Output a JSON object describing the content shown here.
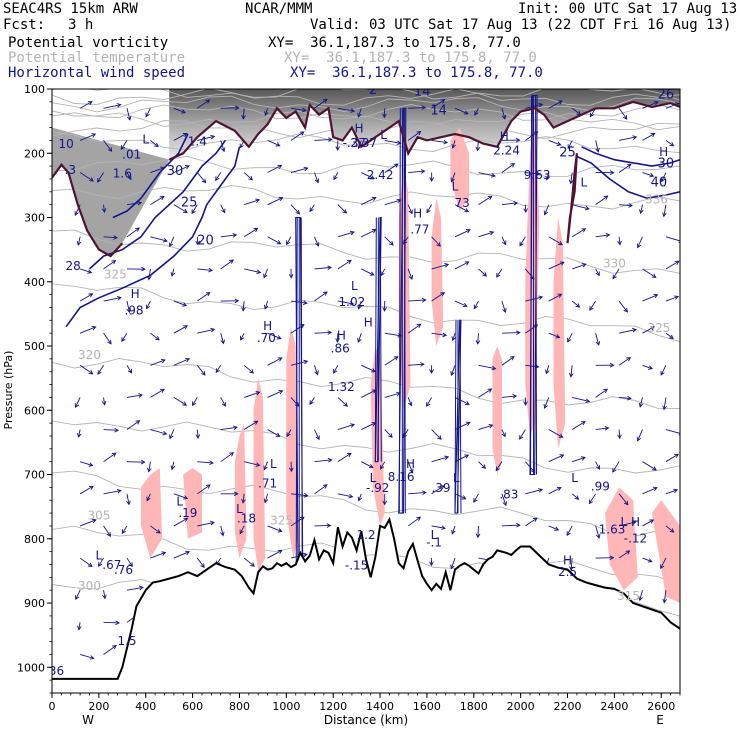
{
  "header": {
    "model": "SEAC4RS 15km ARW",
    "org": "NCAR/MMM",
    "init": "Init: 00 UTC Sat 17 Aug 13",
    "fcst_label": "Fcst:",
    "fcst_value": "3 h",
    "valid": "Valid: 03 UTC Sat 17 Aug 13 (22 CDT Fri 16 Aug 13)",
    "fields": [
      {
        "name": "Potential vorticity",
        "xy": "XY=  36.1,187.3 to 175.8, 77.0",
        "color": "#000000"
      },
      {
        "name": "Potential temperature",
        "xy": "XY=  36.1,187.3 to 175.8, 77.0",
        "color": "#b4b4b4"
      },
      {
        "name": "Horizontal wind speed",
        "xy": "XY=  36.1,187.3 to 175.8, 77.0",
        "color": "#14148c"
      }
    ]
  },
  "colors": {
    "pv_fill": "#ffb6b6",
    "theta": "#b4b4b4",
    "wind": "#14148c",
    "terrain": "#000000",
    "pv_contour": "#501432"
  },
  "chart_data": {
    "type": "cross-section",
    "xlabel": "Distance (km)",
    "ylabel": "Pressure (hPa)",
    "x_ticks": [
      0,
      200,
      400,
      600,
      800,
      1000,
      1200,
      1400,
      1600,
      1800,
      2000,
      2200,
      2400,
      2600
    ],
    "y_ticks": [
      100,
      200,
      300,
      400,
      500,
      600,
      700,
      800,
      900,
      1000
    ],
    "xlim": [
      0,
      2680
    ],
    "ylim": [
      1040,
      100
    ],
    "y_scale": "linear",
    "west_label": "W",
    "east_label": "E",
    "terrain": {
      "x": [
        0,
        280,
        300,
        340,
        360,
        400,
        430,
        460,
        500,
        540,
        580,
        620,
        660,
        700,
        740,
        780,
        810,
        840,
        860,
        880,
        900,
        920,
        940,
        960,
        980,
        1000,
        1020,
        1040,
        1060,
        1080,
        1100,
        1120,
        1140,
        1160,
        1180,
        1200,
        1220,
        1240,
        1260,
        1280,
        1300,
        1320,
        1340,
        1360,
        1380,
        1400,
        1420,
        1440,
        1460,
        1480,
        1500,
        1520,
        1540,
        1560,
        1580,
        1600,
        1620,
        1640,
        1660,
        1680,
        1700,
        1720,
        1740,
        1760,
        1780,
        1800,
        1820,
        1840,
        1860,
        1880,
        1900,
        1920,
        1940,
        1960,
        1980,
        2000,
        2040,
        2080,
        2120,
        2160,
        2200,
        2240,
        2280,
        2320,
        2360,
        2400,
        2440,
        2480,
        2520,
        2560,
        2600,
        2640,
        2680
      ],
      "p": [
        1018,
        1018,
        1000,
        940,
        905,
        880,
        868,
        866,
        862,
        858,
        852,
        858,
        848,
        838,
        844,
        848,
        858,
        876,
        885,
        852,
        843,
        848,
        846,
        838,
        842,
        838,
        844,
        840,
        822,
        835,
        826,
        802,
        832,
        818,
        822,
        838,
        782,
        812,
        790,
        798,
        818,
        788,
        832,
        860,
        828,
        780,
        783,
        770,
        800,
        838,
        846,
        820,
        808,
        834,
        858,
        870,
        880,
        870,
        878,
        852,
        880,
        848,
        842,
        838,
        842,
        848,
        854,
        840,
        832,
        828,
        818,
        820,
        822,
        825,
        818,
        812,
        812,
        826,
        840,
        845,
        848,
        862,
        868,
        872,
        876,
        878,
        885,
        900,
        905,
        910,
        915,
        930,
        940
      ]
    },
    "pv_contours": [
      {
        "x": [
          500,
          560,
          620,
          700,
          780,
          840,
          880,
          920,
          960,
          1000,
          1040,
          1080,
          1100,
          1140,
          1180,
          1200,
          1240,
          1280,
          1320,
          1380,
          1440,
          1480,
          1520,
          1560,
          1600,
          1660,
          1720,
          1780,
          1840,
          1900,
          1960,
          2000,
          2060,
          2100,
          2140,
          2200,
          2260,
          2320,
          2400,
          2480,
          2560,
          2640,
          2680
        ],
        "p": [
          210,
          200,
          175,
          150,
          165,
          190,
          170,
          155,
          130,
          145,
          135,
          160,
          125,
          140,
          130,
          175,
          180,
          160,
          190,
          175,
          160,
          150,
          200,
          175,
          180,
          175,
          170,
          175,
          185,
          190,
          150,
          135,
          130,
          140,
          160,
          150,
          140,
          130,
          130,
          120,
          128,
          122,
          128
        ]
      },
      {
        "x": [
          0,
          40,
          70,
          110,
          150,
          200,
          250,
          300
        ],
        "p": [
          238,
          218,
          230,
          280,
          320,
          350,
          360,
          340
        ]
      },
      {
        "x": [
          2200,
          2210,
          2230,
          2240,
          2230,
          2215,
          2200
        ],
        "p": [
          340,
          300,
          260,
          200,
          230,
          290,
          340
        ]
      }
    ],
    "pv_labels": [
      {
        "text": "10",
        "x": 60,
        "p": 192
      },
      {
        "text": ".3",
        "x": 78,
        "p": 232
      },
      {
        "text": "28",
        "x": 90,
        "p": 382
      },
      {
        "text": "1.6",
        "x": 300,
        "p": 238
      },
      {
        "text": ".01",
        "x": 340,
        "p": 208
      },
      {
        "text": "1.4",
        "x": 620,
        "p": 188
      },
      {
        "text": "-.37",
        "x": 1290,
        "p": 190
      },
      {
        "text": "2.37",
        "x": 1330,
        "p": 190
      },
      {
        "text": "2.42",
        "x": 1400,
        "p": 240
      },
      {
        "text": "2.24",
        "x": 1940,
        "p": 202
      },
      {
        "text": "9.63",
        "x": 2070,
        "p": 240
      },
      {
        "text": "1.02",
        "x": 1280,
        "p": 438
      },
      {
        "text": "1.32",
        "x": 1235,
        "p": 570
      },
      {
        "text": ".86",
        "x": 1230,
        "p": 510
      },
      {
        "text": ".70",
        "x": 915,
        "p": 494
      },
      {
        "text": ".98",
        "x": 350,
        "p": 451
      },
      {
        "text": ".71",
        "x": 920,
        "p": 720
      },
      {
        "text": ".19",
        "x": 580,
        "p": 766
      },
      {
        "text": ".18",
        "x": 830,
        "p": 775
      },
      {
        "text": "-.92",
        "x": 1390,
        "p": 727
      },
      {
        "text": "8.16",
        "x": 1490,
        "p": 710
      },
      {
        "text": ".39",
        "x": 1660,
        "p": 727
      },
      {
        "text": ".83",
        "x": 1950,
        "p": 737
      },
      {
        "text": ".99",
        "x": 2340,
        "p": 725
      },
      {
        "text": "1.63",
        "x": 2390,
        "p": 792
      },
      {
        "text": "-.12",
        "x": 2490,
        "p": 806
      },
      {
        "text": "-.15",
        "x": 1300,
        "p": 848
      },
      {
        "text": "1.2",
        "x": 1340,
        "p": 800
      },
      {
        "text": ".67",
        "x": 255,
        "p": 847
      },
      {
        "text": ".76",
        "x": 305,
        "p": 855
      },
      {
        "text": "2.5",
        "x": 2200,
        "p": 858
      },
      {
        "text": "1.5",
        "x": 320,
        "p": 965
      },
      {
        "text": "-.1",
        "x": 1630,
        "p": 812
      },
      {
        "text": "-36",
        "x": 10,
        "p": 1012
      },
      {
        "text": "73",
        "x": 1750,
        "p": 284
      },
      {
        "text": ".77",
        "x": 1570,
        "p": 325
      }
    ],
    "hl_markers": [
      {
        "text": "H",
        "x": 355,
        "p": 425
      },
      {
        "text": "H",
        "x": 920,
        "p": 475
      },
      {
        "text": "H",
        "x": 1235,
        "p": 490
      },
      {
        "text": "H",
        "x": 1350,
        "p": 470
      },
      {
        "text": "H",
        "x": 1530,
        "p": 690
      },
      {
        "text": "H",
        "x": 1560,
        "p": 300
      },
      {
        "text": "H",
        "x": 1930,
        "p": 180
      },
      {
        "text": "H",
        "x": 2610,
        "p": 204
      },
      {
        "text": "H",
        "x": 2490,
        "p": 780
      },
      {
        "text": "H",
        "x": 2200,
        "p": 840
      },
      {
        "text": "H",
        "x": 1310,
        "p": 168
      },
      {
        "text": "L",
        "x": 1290,
        "p": 413
      },
      {
        "text": "L",
        "x": 945,
        "p": 690
      },
      {
        "text": "L",
        "x": 545,
        "p": 748
      },
      {
        "text": "L",
        "x": 800,
        "p": 760
      },
      {
        "text": "L",
        "x": 1370,
        "p": 712
      },
      {
        "text": "L",
        "x": 1725,
        "p": 712
      },
      {
        "text": "L",
        "x": 2230,
        "p": 712
      },
      {
        "text": "L",
        "x": 2440,
        "p": 780
      },
      {
        "text": "L",
        "x": 2270,
        "p": 252
      },
      {
        "text": "L",
        "x": 1720,
        "p": 258
      },
      {
        "text": "L",
        "x": 400,
        "p": 185
      },
      {
        "text": "L",
        "x": 1415,
        "p": 178
      },
      {
        "text": "L",
        "x": 200,
        "p": 832
      },
      {
        "text": "L",
        "x": 1630,
        "p": 800
      }
    ],
    "wind_speed_labels": [
      {
        "text": "30",
        "x": 525,
        "p": 234
      },
      {
        "text": "25",
        "x": 585,
        "p": 283
      },
      {
        "text": "20",
        "x": 655,
        "p": 342
      },
      {
        "text": "30",
        "x": 2620,
        "p": 222
      },
      {
        "text": "40",
        "x": 2590,
        "p": 252
      },
      {
        "text": "26",
        "x": 2620,
        "p": 115
      },
      {
        "text": "25",
        "x": 2200,
        "p": 205
      },
      {
        "text": "14",
        "x": 1580,
        "p": 110
      },
      {
        "text": "14",
        "x": 1650,
        "p": 140
      },
      {
        "text": "2",
        "x": 1370,
        "p": 108
      }
    ],
    "theta_labels": [
      {
        "text": "325",
        "x": 270,
        "p": 395
      },
      {
        "text": "320",
        "x": 160,
        "p": 520
      },
      {
        "text": "305",
        "x": 200,
        "p": 770
      },
      {
        "text": "300",
        "x": 160,
        "p": 880
      },
      {
        "text": "330",
        "x": 2400,
        "p": 378
      },
      {
        "text": "325",
        "x": 2590,
        "p": 478
      },
      {
        "text": "336",
        "x": 2580,
        "p": 278
      },
      {
        "text": "315",
        "x": 2460,
        "p": 895
      },
      {
        "text": "325",
        "x": 980,
        "p": 778
      }
    ],
    "theta_isentropes": [
      {
        "value": 300,
        "p_left": 870,
        "p_right": 915
      },
      {
        "value": 305,
        "p_left": 790,
        "p_right": 860
      },
      {
        "value": 310,
        "p_left": 700,
        "p_right": 790
      },
      {
        "value": 315,
        "p_left": 610,
        "p_right": 700
      },
      {
        "value": 320,
        "p_left": 520,
        "p_right": 600
      },
      {
        "value": 325,
        "p_left": 410,
        "p_right": 480
      },
      {
        "value": 330,
        "p_left": 330,
        "p_right": 380
      },
      {
        "value": 336,
        "p_left": 255,
        "p_right": 280
      },
      {
        "value": 340,
        "p_left": 215,
        "p_right": 230
      },
      {
        "value": 350,
        "p_left": 180,
        "p_right": 188
      },
      {
        "value": 360,
        "p_left": 160,
        "p_right": 165
      },
      {
        "value": 370,
        "p_left": 145,
        "p_right": 150
      },
      {
        "value": 380,
        "p_left": 135,
        "p_right": 138
      },
      {
        "value": 400,
        "p_left": 122,
        "p_right": 124
      },
      {
        "value": 420,
        "p_left": 112,
        "p_right": 114
      },
      {
        "value": 450,
        "p_left": 104,
        "p_right": 105
      }
    ],
    "wind_speed_contours": [
      {
        "x": [
          60,
          120,
          200,
          300,
          420,
          520,
          600,
          640,
          660,
          720,
          780,
          800
        ],
        "p": [
          470,
          440,
          425,
          410,
          390,
          360,
          330,
          300,
          280,
          250,
          220,
          190
        ]
      },
      {
        "x": [
          160,
          220,
          300,
          380,
          440,
          500,
          560,
          600,
          640,
          700,
          740
        ],
        "p": [
          380,
          360,
          350,
          330,
          300,
          280,
          260,
          240,
          220,
          200,
          180
        ]
      },
      {
        "x": [
          260,
          320,
          380,
          420,
          460,
          500,
          540,
          560,
          580
        ],
        "p": [
          300,
          290,
          270,
          250,
          230,
          215,
          200,
          185,
          170
        ]
      },
      {
        "x": [
          2240,
          2300,
          2380,
          2460,
          2540,
          2620,
          2680
        ],
        "p": [
          205,
          215,
          240,
          260,
          270,
          265,
          260
        ]
      },
      {
        "x": [
          2260,
          2320,
          2400,
          2480,
          2560,
          2640,
          2680
        ],
        "p": [
          190,
          200,
          210,
          215,
          220,
          215,
          210
        ]
      }
    ],
    "pv_fill_regions": [
      {
        "x": [
          380,
          420,
          460,
          470,
          420,
          380
        ],
        "p": [
          720,
          700,
          690,
          800,
          830,
          780
        ]
      },
      {
        "x": [
          560,
          600,
          640,
          640,
          580
        ],
        "p": [
          700,
          690,
          700,
          790,
          800
        ]
      },
      {
        "x": [
          780,
          800,
          820,
          830,
          800,
          780
        ],
        "p": [
          680,
          640,
          620,
          800,
          830,
          790
        ]
      },
      {
        "x": [
          860,
          880,
          900,
          910,
          880,
          860
        ],
        "p": [
          600,
          550,
          580,
          830,
          850,
          800
        ]
      },
      {
        "x": [
          1000,
          1020,
          1040,
          1050,
          1030,
          1000
        ],
        "p": [
          520,
          470,
          500,
          800,
          830,
          760
        ]
      },
      {
        "x": [
          1360,
          1380,
          1400,
          1420,
          1400,
          1370
        ],
        "p": [
          560,
          500,
          520,
          760,
          780,
          720
        ]
      },
      {
        "x": [
          1480,
          1500,
          1520,
          1530,
          1500,
          1480
        ],
        "p": [
          300,
          220,
          260,
          560,
          600,
          500
        ]
      },
      {
        "x": [
          1620,
          1640,
          1660,
          1670,
          1640,
          1620
        ],
        "p": [
          330,
          270,
          300,
          470,
          500,
          430
        ]
      },
      {
        "x": [
          1880,
          1900,
          1920,
          1920,
          1900,
          1880
        ],
        "p": [
          520,
          500,
          520,
          680,
          700,
          660
        ]
      },
      {
        "x": [
          2020,
          2040,
          2060,
          2080,
          2060,
          2040,
          2020
        ],
        "p": [
          400,
          200,
          140,
          300,
          620,
          640,
          560
        ]
      },
      {
        "x": [
          2140,
          2160,
          2180,
          2190,
          2160,
          2140
        ],
        "p": [
          400,
          300,
          340,
          620,
          660,
          560
        ]
      },
      {
        "x": [
          2360,
          2420,
          2480,
          2500,
          2440,
          2380
        ],
        "p": [
          760,
          720,
          740,
          860,
          880,
          840
        ]
      },
      {
        "x": [
          2560,
          2600,
          2640,
          2680,
          2680,
          2620
        ],
        "p": [
          760,
          740,
          760,
          780,
          900,
          890
        ]
      },
      {
        "x": [
          1700,
          1740,
          1780,
          1780,
          1740,
          1700
        ],
        "p": [
          180,
          160,
          200,
          270,
          290,
          240
        ]
      }
    ],
    "jet_streaks": [
      {
        "x": [
          1050,
          1040,
          1060,
          1070
        ],
        "p": [
          850,
          300,
          300,
          850
        ]
      },
      {
        "x": [
          1480,
          1500,
          1510,
          1500
        ],
        "p": [
          760,
          130,
          130,
          760
        ]
      },
      {
        "x": [
          2040,
          2050,
          2070,
          2060
        ],
        "p": [
          700,
          110,
          110,
          700
        ]
      },
      {
        "x": [
          1720,
          1740,
          1745,
          1730
        ],
        "p": [
          760,
          460,
          460,
          760
        ]
      },
      {
        "x": [
          1380,
          1400,
          1405,
          1390
        ],
        "p": [
          680,
          300,
          300,
          680
        ]
      }
    ]
  }
}
